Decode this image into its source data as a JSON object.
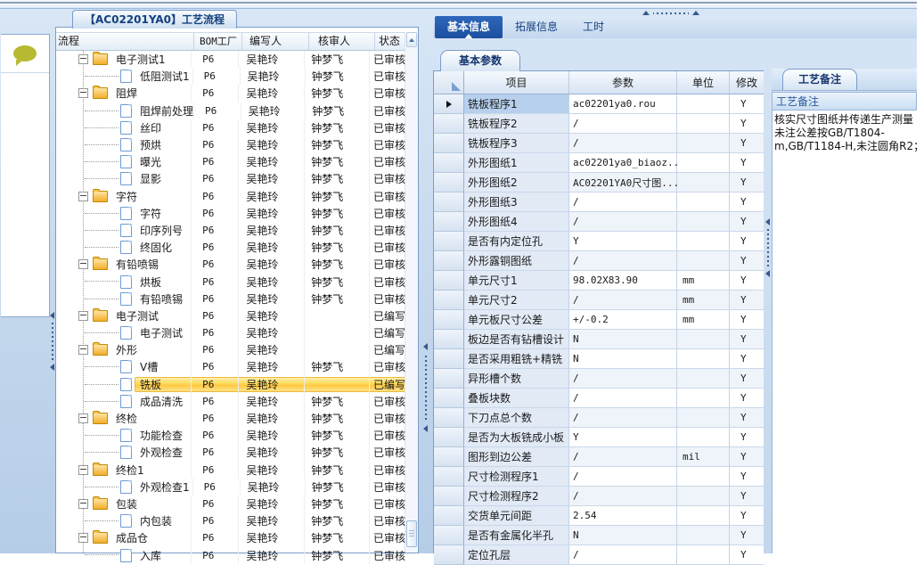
{
  "flow_panel": {
    "title": "【AC02201YA0】工艺流程",
    "columns": [
      "流程",
      "BOM工厂",
      "编写人",
      "核审人",
      "状态"
    ],
    "rows": [
      {
        "label": "电子测试1",
        "type": "folder",
        "bom": "P6",
        "writer": "吴艳玲",
        "reviewer": "钟梦飞",
        "status": "已审核",
        "selected": false
      },
      {
        "label": "低阻测试1",
        "type": "leaf",
        "bom": "P6",
        "writer": "吴艳玲",
        "reviewer": "钟梦飞",
        "status": "已审核",
        "selected": false
      },
      {
        "label": "阻焊",
        "type": "folder",
        "bom": "P6",
        "writer": "吴艳玲",
        "reviewer": "钟梦飞",
        "status": "已审核",
        "selected": false
      },
      {
        "label": "阻焊前处理",
        "type": "leaf",
        "bom": "P6",
        "writer": "吴艳玲",
        "reviewer": "钟梦飞",
        "status": "已审核",
        "selected": false
      },
      {
        "label": "丝印",
        "type": "leaf",
        "bom": "P6",
        "writer": "吴艳玲",
        "reviewer": "钟梦飞",
        "status": "已审核",
        "selected": false
      },
      {
        "label": "预烘",
        "type": "leaf",
        "bom": "P6",
        "writer": "吴艳玲",
        "reviewer": "钟梦飞",
        "status": "已审核",
        "selected": false
      },
      {
        "label": "曝光",
        "type": "leaf",
        "bom": "P6",
        "writer": "吴艳玲",
        "reviewer": "钟梦飞",
        "status": "已审核",
        "selected": false
      },
      {
        "label": "显影",
        "type": "leaf",
        "bom": "P6",
        "writer": "吴艳玲",
        "reviewer": "钟梦飞",
        "status": "已审核",
        "selected": false
      },
      {
        "label": "字符",
        "type": "folder",
        "bom": "P6",
        "writer": "吴艳玲",
        "reviewer": "钟梦飞",
        "status": "已审核",
        "selected": false
      },
      {
        "label": "字符",
        "type": "leaf",
        "bom": "P6",
        "writer": "吴艳玲",
        "reviewer": "钟梦飞",
        "status": "已审核",
        "selected": false
      },
      {
        "label": "印序列号",
        "type": "leaf",
        "bom": "P6",
        "writer": "吴艳玲",
        "reviewer": "钟梦飞",
        "status": "已审核",
        "selected": false
      },
      {
        "label": "终固化",
        "type": "leaf",
        "bom": "P6",
        "writer": "吴艳玲",
        "reviewer": "钟梦飞",
        "status": "已审核",
        "selected": false
      },
      {
        "label": "有铅喷锡",
        "type": "folder",
        "bom": "P6",
        "writer": "吴艳玲",
        "reviewer": "钟梦飞",
        "status": "已审核",
        "selected": false
      },
      {
        "label": "烘板",
        "type": "leaf",
        "bom": "P6",
        "writer": "吴艳玲",
        "reviewer": "钟梦飞",
        "status": "已审核",
        "selected": false
      },
      {
        "label": "有铅喷锡",
        "type": "leaf",
        "bom": "P6",
        "writer": "吴艳玲",
        "reviewer": "钟梦飞",
        "status": "已审核",
        "selected": false
      },
      {
        "label": "电子测试",
        "type": "folder",
        "bom": "P6",
        "writer": "吴艳玲",
        "reviewer": "",
        "status": "已编写",
        "selected": false
      },
      {
        "label": "电子测试",
        "type": "leaf",
        "bom": "P6",
        "writer": "吴艳玲",
        "reviewer": "",
        "status": "已编写",
        "selected": false
      },
      {
        "label": "外形",
        "type": "folder",
        "bom": "P6",
        "writer": "吴艳玲",
        "reviewer": "",
        "status": "已编写",
        "selected": false
      },
      {
        "label": "V槽",
        "type": "leaf",
        "bom": "P6",
        "writer": "吴艳玲",
        "reviewer": "钟梦飞",
        "status": "已审核",
        "selected": false
      },
      {
        "label": "铣板",
        "type": "leaf",
        "bom": "P6",
        "writer": "吴艳玲",
        "reviewer": "",
        "status": "已编写",
        "selected": true
      },
      {
        "label": "成品清洗",
        "type": "leaf",
        "bom": "P6",
        "writer": "吴艳玲",
        "reviewer": "钟梦飞",
        "status": "已审核",
        "selected": false
      },
      {
        "label": "终检",
        "type": "folder",
        "bom": "P6",
        "writer": "吴艳玲",
        "reviewer": "钟梦飞",
        "status": "已审核",
        "selected": false
      },
      {
        "label": "功能检查",
        "type": "leaf",
        "bom": "P6",
        "writer": "吴艳玲",
        "reviewer": "钟梦飞",
        "status": "已审核",
        "selected": false
      },
      {
        "label": "外观检查",
        "type": "leaf",
        "bom": "P6",
        "writer": "吴艳玲",
        "reviewer": "钟梦飞",
        "status": "已审核",
        "selected": false
      },
      {
        "label": "终检1",
        "type": "folder",
        "bom": "P6",
        "writer": "吴艳玲",
        "reviewer": "钟梦飞",
        "status": "已审核",
        "selected": false
      },
      {
        "label": "外观检查1",
        "type": "leaf",
        "bom": "P6",
        "writer": "吴艳玲",
        "reviewer": "钟梦飞",
        "status": "已审核",
        "selected": false
      },
      {
        "label": "包装",
        "type": "folder",
        "bom": "P6",
        "writer": "吴艳玲",
        "reviewer": "钟梦飞",
        "status": "已审核",
        "selected": false
      },
      {
        "label": "内包装",
        "type": "leaf",
        "bom": "P6",
        "writer": "吴艳玲",
        "reviewer": "钟梦飞",
        "status": "已审核",
        "selected": false
      },
      {
        "label": "成品仓",
        "type": "folder",
        "bom": "P6",
        "writer": "吴艳玲",
        "reviewer": "钟梦飞",
        "status": "已审核",
        "selected": false
      },
      {
        "label": "入库",
        "type": "leaf",
        "bom": "P6",
        "writer": "吴艳玲",
        "reviewer": "钟梦飞",
        "status": "已审核",
        "selected": false
      }
    ]
  },
  "info_panel": {
    "tabs": [
      {
        "label": "基本信息",
        "selected": true
      },
      {
        "label": "拓展信息",
        "selected": false
      },
      {
        "label": "工时",
        "selected": false
      }
    ],
    "params_tab": "基本参数",
    "table": {
      "columns": [
        "项目",
        "参数",
        "单位",
        "修改"
      ],
      "rows": [
        {
          "item": "铣板程序1",
          "value": "ac02201ya0.rou",
          "unit": "",
          "modify": "Y",
          "selected": true
        },
        {
          "item": "铣板程序2",
          "value": "/",
          "unit": "",
          "modify": "Y",
          "selected": false
        },
        {
          "item": "铣板程序3",
          "value": "/",
          "unit": "",
          "modify": "Y",
          "selected": false
        },
        {
          "item": "外形图纸1",
          "value": "ac02201ya0_biaoz...",
          "unit": "",
          "modify": "Y",
          "selected": false
        },
        {
          "item": "外形图纸2",
          "value": "AC02201YA0尺寸图...",
          "unit": "",
          "modify": "Y",
          "selected": false
        },
        {
          "item": "外形图纸3",
          "value": "/",
          "unit": "",
          "modify": "Y",
          "selected": false
        },
        {
          "item": "外形图纸4",
          "value": "/",
          "unit": "",
          "modify": "Y",
          "selected": false
        },
        {
          "item": "是否有内定位孔",
          "value": "Y",
          "unit": "",
          "modify": "Y",
          "selected": false
        },
        {
          "item": "外形露铜图纸",
          "value": "/",
          "unit": "",
          "modify": "Y",
          "selected": false
        },
        {
          "item": "单元尺寸1",
          "value": "98.02X83.90",
          "unit": "mm",
          "modify": "Y",
          "selected": false
        },
        {
          "item": "单元尺寸2",
          "value": "/",
          "unit": "mm",
          "modify": "Y",
          "selected": false
        },
        {
          "item": "单元板尺寸公差",
          "value": "+/-0.2",
          "unit": "mm",
          "modify": "Y",
          "selected": false
        },
        {
          "item": "板边是否有钻槽设计",
          "value": "N",
          "unit": "",
          "modify": "Y",
          "selected": false
        },
        {
          "item": "是否采用粗铣+精铣",
          "value": "N",
          "unit": "",
          "modify": "Y",
          "selected": false
        },
        {
          "item": "异形槽个数",
          "value": "/",
          "unit": "",
          "modify": "Y",
          "selected": false
        },
        {
          "item": "叠板块数",
          "value": "/",
          "unit": "",
          "modify": "Y",
          "selected": false
        },
        {
          "item": "下刀点总个数",
          "value": "/",
          "unit": "",
          "modify": "Y",
          "selected": false
        },
        {
          "item": "是否为大板铣成小板",
          "value": "Y",
          "unit": "",
          "modify": "Y",
          "selected": false
        },
        {
          "item": "图形到边公差",
          "value": "/",
          "unit": "mil",
          "modify": "Y",
          "selected": false
        },
        {
          "item": "尺寸检测程序1",
          "value": "/",
          "unit": "",
          "modify": "Y",
          "selected": false
        },
        {
          "item": "尺寸检测程序2",
          "value": "/",
          "unit": "",
          "modify": "Y",
          "selected": false
        },
        {
          "item": "交货单元间距",
          "value": "2.54",
          "unit": "",
          "modify": "Y",
          "selected": false
        },
        {
          "item": "是否有金属化半孔",
          "value": "N",
          "unit": "",
          "modify": "Y",
          "selected": false
        },
        {
          "item": "定位孔层",
          "value": "/",
          "unit": "",
          "modify": "Y",
          "selected": false
        }
      ]
    }
  },
  "notes_panel": {
    "tab": "工艺备注",
    "header": "工艺备注",
    "lines": [
      "核实尺寸图纸并传递生产测量",
      "未注公差按GB/T1804-",
      "m,GB/T1184-H,未注圆角R2；"
    ]
  },
  "colors": {
    "selection_highlight": "#ffd952",
    "selected_tab": "#1c4f9e",
    "panel_border": "#7a9cc9",
    "comment_icon": "#b5ba30"
  }
}
